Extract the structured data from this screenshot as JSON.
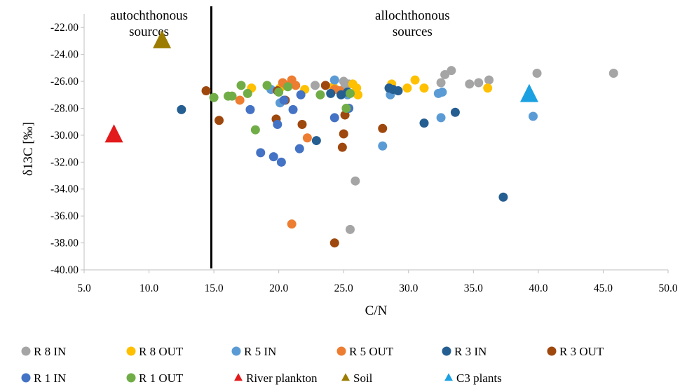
{
  "chart_data": {
    "type": "scatter",
    "xlabel": "C/N",
    "ylabel": "δ13C [‰]",
    "xlim": [
      5,
      50
    ],
    "ylim": [
      -40,
      -21
    ],
    "x_ticks": [
      "5.0",
      "10.0",
      "15.0",
      "20.0",
      "25.0",
      "30.0",
      "35.0",
      "40.0",
      "45.0",
      "50.0"
    ],
    "y_ticks": [
      "-22.00",
      "-24.00",
      "-26.00",
      "-28.00",
      "-30.00",
      "-32.00",
      "-34.00",
      "-36.00",
      "-38.00",
      "-40.00"
    ],
    "grid": false,
    "legend_position": "bottom",
    "divider": {
      "x": 14.8
    },
    "annotations": [
      {
        "lines": [
          "autochthonous",
          "sources"
        ],
        "x": 10.0
      },
      {
        "lines": [
          "allochthonous",
          "sources"
        ],
        "x": 30.3
      }
    ],
    "series": [
      {
        "name": "R 8 IN",
        "marker": "circle",
        "color": "#a5a5a5",
        "points": [
          [
            22.8,
            -26.3
          ],
          [
            24.4,
            -26.6
          ],
          [
            25.0,
            -26.0
          ],
          [
            25.1,
            -26.4
          ],
          [
            25.4,
            -26.2
          ],
          [
            25.9,
            -33.4
          ],
          [
            25.5,
            -37.0
          ],
          [
            32.5,
            -26.1
          ],
          [
            32.8,
            -25.5
          ],
          [
            33.3,
            -25.2
          ],
          [
            34.7,
            -26.2
          ],
          [
            35.4,
            -26.1
          ],
          [
            36.2,
            -25.9
          ],
          [
            39.9,
            -25.4
          ],
          [
            45.8,
            -25.4
          ]
        ]
      },
      {
        "name": "R 8 OUT",
        "marker": "circle",
        "color": "#ffc000",
        "points": [
          [
            17.9,
            -26.5
          ],
          [
            20.1,
            -26.5
          ],
          [
            22.0,
            -26.6
          ],
          [
            24.2,
            -26.4
          ],
          [
            25.7,
            -26.2
          ],
          [
            26.0,
            -26.5
          ],
          [
            26.1,
            -27.0
          ],
          [
            28.7,
            -26.2
          ],
          [
            29.9,
            -26.5
          ],
          [
            30.5,
            -25.9
          ],
          [
            31.2,
            -26.5
          ],
          [
            36.1,
            -26.5
          ]
        ]
      },
      {
        "name": "R 5 IN",
        "marker": "circle",
        "color": "#5b9bd5",
        "points": [
          [
            19.4,
            -26.6
          ],
          [
            20.1,
            -27.6
          ],
          [
            24.3,
            -25.9
          ],
          [
            24.8,
            -26.8
          ],
          [
            25.3,
            -27.0
          ],
          [
            28.0,
            -30.8
          ],
          [
            28.6,
            -27.0
          ],
          [
            32.3,
            -26.9
          ],
          [
            32.6,
            -26.8
          ],
          [
            32.5,
            -28.7
          ],
          [
            39.6,
            -28.6
          ]
        ]
      },
      {
        "name": "R 5 OUT",
        "marker": "circle",
        "color": "#ed7d31",
        "points": [
          [
            17.0,
            -27.4
          ],
          [
            20.3,
            -26.1
          ],
          [
            20.6,
            -26.3
          ],
          [
            21.0,
            -25.9
          ],
          [
            21.3,
            -26.3
          ],
          [
            22.2,
            -30.2
          ],
          [
            21.0,
            -36.6
          ],
          [
            24.3,
            -26.6
          ],
          [
            24.7,
            -26.7
          ]
        ]
      },
      {
        "name": "R 3 IN",
        "marker": "circle",
        "color": "#255e91",
        "points": [
          [
            12.5,
            -28.1
          ],
          [
            22.9,
            -30.4
          ],
          [
            24.0,
            -26.9
          ],
          [
            24.8,
            -27.0
          ],
          [
            25.3,
            -26.8
          ],
          [
            28.5,
            -26.5
          ],
          [
            28.8,
            -26.6
          ],
          [
            29.2,
            -26.7
          ],
          [
            31.2,
            -29.1
          ],
          [
            33.6,
            -28.3
          ],
          [
            37.3,
            -34.6
          ]
        ]
      },
      {
        "name": "R 3 OUT",
        "marker": "circle",
        "color": "#9e480e",
        "points": [
          [
            14.4,
            -26.7
          ],
          [
            15.4,
            -28.9
          ],
          [
            19.8,
            -28.8
          ],
          [
            19.9,
            -26.7
          ],
          [
            20.5,
            -27.4
          ],
          [
            21.8,
            -29.2
          ],
          [
            23.6,
            -26.3
          ],
          [
            24.3,
            -38.0
          ],
          [
            24.9,
            -30.9
          ],
          [
            25.0,
            -29.9
          ],
          [
            25.1,
            -28.5
          ],
          [
            28.0,
            -29.5
          ]
        ]
      },
      {
        "name": "R 1 IN",
        "marker": "circle",
        "color": "#4472c4",
        "points": [
          [
            17.8,
            -28.1
          ],
          [
            18.6,
            -31.3
          ],
          [
            19.6,
            -31.6
          ],
          [
            19.9,
            -29.2
          ],
          [
            20.2,
            -32.0
          ],
          [
            20.4,
            -27.4
          ],
          [
            21.1,
            -28.1
          ],
          [
            21.7,
            -27.0
          ],
          [
            21.6,
            -31.0
          ],
          [
            24.3,
            -28.7
          ],
          [
            25.4,
            -28.0
          ]
        ]
      },
      {
        "name": "R 1 OUT",
        "marker": "circle",
        "color": "#70ad47",
        "points": [
          [
            15.0,
            -27.2
          ],
          [
            16.1,
            -27.1
          ],
          [
            16.4,
            -27.1
          ],
          [
            17.1,
            -26.3
          ],
          [
            17.6,
            -26.9
          ],
          [
            18.2,
            -29.6
          ],
          [
            19.1,
            -26.3
          ],
          [
            20.0,
            -26.8
          ],
          [
            20.7,
            -26.4
          ],
          [
            23.2,
            -27.0
          ],
          [
            25.2,
            -28.0
          ],
          [
            25.5,
            -26.9
          ]
        ]
      },
      {
        "name": "River plankton",
        "marker": "triangle",
        "color": "#e31a1c",
        "points": [
          [
            7.3,
            -30.0
          ]
        ]
      },
      {
        "name": "Soil",
        "marker": "triangle",
        "color": "#9c7c00",
        "points": [
          [
            11.0,
            -23.0
          ]
        ]
      },
      {
        "name": "C3 plants",
        "marker": "triangle",
        "color": "#1ba1e2",
        "points": [
          [
            39.3,
            -27.0
          ]
        ]
      }
    ]
  }
}
